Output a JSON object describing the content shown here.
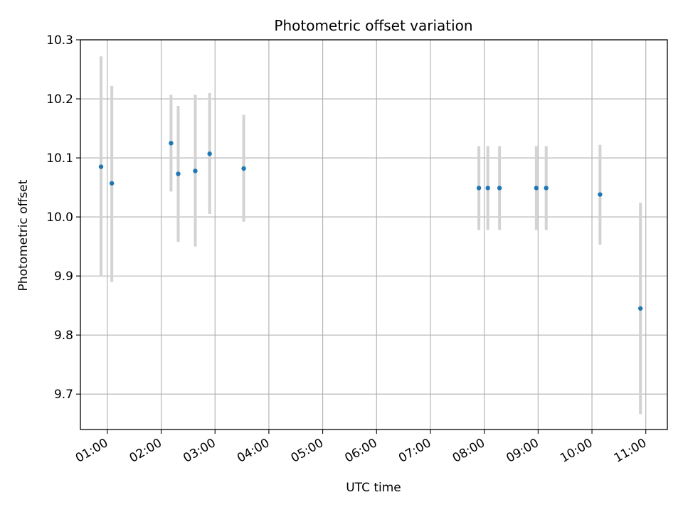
{
  "chart_data": {
    "type": "scatter",
    "title": "Photometric offset variation",
    "xlabel": "UTC time",
    "ylabel": "Photometric offset",
    "x_tick_labels": [
      "01:00",
      "02:00",
      "03:00",
      "04:00",
      "05:00",
      "06:00",
      "07:00",
      "08:00",
      "09:00",
      "10:00",
      "11:00"
    ],
    "y_tick_labels": [
      "9.7",
      "9.8",
      "9.9",
      "10.0",
      "10.1",
      "10.2",
      "10.3"
    ],
    "y_ticks": [
      9.7,
      9.8,
      9.9,
      10.0,
      10.1,
      10.2,
      10.3
    ],
    "xlim": [
      "00:30",
      "11:24"
    ],
    "ylim": [
      9.64,
      10.3
    ],
    "grid": true,
    "marker_color": "#1f77b4",
    "errorbar_color": "#d3d3d3",
    "points": [
      {
        "x": "00:53",
        "y": 10.085,
        "y_low": 9.9,
        "y_high": 10.272
      },
      {
        "x": "01:05",
        "y": 10.057,
        "y_low": 9.89,
        "y_high": 10.222
      },
      {
        "x": "02:11",
        "y": 10.125,
        "y_low": 10.043,
        "y_high": 10.207
      },
      {
        "x": "02:19",
        "y": 10.073,
        "y_low": 9.958,
        "y_high": 10.188
      },
      {
        "x": "02:38",
        "y": 10.078,
        "y_low": 9.95,
        "y_high": 10.207
      },
      {
        "x": "02:54",
        "y": 10.107,
        "y_low": 10.005,
        "y_high": 10.21
      },
      {
        "x": "03:32",
        "y": 10.082,
        "y_low": 9.992,
        "y_high": 10.173
      },
      {
        "x": "07:54",
        "y": 10.049,
        "y_low": 9.978,
        "y_high": 10.12
      },
      {
        "x": "08:04",
        "y": 10.049,
        "y_low": 9.978,
        "y_high": 10.12
      },
      {
        "x": "08:17",
        "y": 10.049,
        "y_low": 9.978,
        "y_high": 10.12
      },
      {
        "x": "08:58",
        "y": 10.049,
        "y_low": 9.978,
        "y_high": 10.12
      },
      {
        "x": "09:09",
        "y": 10.049,
        "y_low": 9.978,
        "y_high": 10.12
      },
      {
        "x": "10:09",
        "y": 10.038,
        "y_low": 9.953,
        "y_high": 10.122
      },
      {
        "x": "10:54",
        "y": 9.845,
        "y_low": 9.666,
        "y_high": 10.024
      }
    ]
  }
}
